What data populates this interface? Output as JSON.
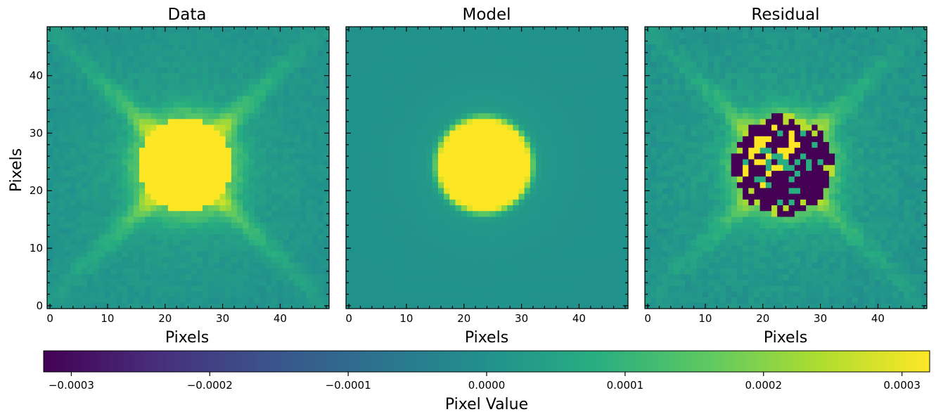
{
  "chart_data": {
    "type": "heatmap",
    "panels": [
      {
        "title": "Data",
        "xlabel": "Pixels",
        "ylabel": "Pixels",
        "model": "data"
      },
      {
        "title": "Model",
        "xlabel": "Pixels",
        "ylabel": "",
        "model": "model"
      },
      {
        "title": "Residual",
        "xlabel": "Pixels",
        "ylabel": "",
        "model": "residual"
      }
    ],
    "grid_size": [
      49,
      49
    ],
    "xlim": [
      -0.5,
      48.5
    ],
    "ylim": [
      -0.5,
      48.5
    ],
    "x_ticks": [
      0,
      10,
      20,
      30,
      40
    ],
    "y_ticks": [
      0,
      10,
      20,
      30,
      40
    ],
    "y_tick_labels_on": [
      "Data"
    ],
    "grid": false,
    "colormap": "viridis",
    "source": {
      "center": [
        23.5,
        24.5
      ],
      "saturated_radius": 7.5
    },
    "colorbar": {
      "label": "Pixel Value",
      "range": [
        -0.00032,
        0.00032
      ],
      "ticks": [
        -0.0003,
        -0.0002,
        -0.0001,
        0.0,
        0.0001,
        0.0002,
        0.0003
      ],
      "tick_labels": [
        "−0.0003",
        "−0.0002",
        "−0.0001",
        "0.0000",
        "0.0001",
        "0.0002",
        "0.0003"
      ],
      "orientation": "horizontal",
      "placement": "bottom"
    }
  }
}
